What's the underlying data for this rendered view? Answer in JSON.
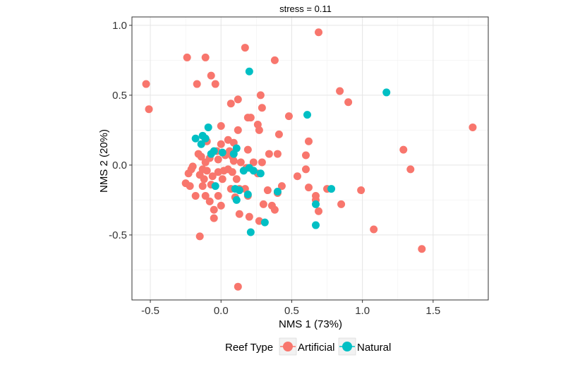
{
  "chart_data": {
    "type": "scatter",
    "title": "stress = 0.11",
    "xlabel": "NMS 1 (73%)",
    "ylabel": "NMS 2 (20%)",
    "xlim": [
      -0.63,
      1.89
    ],
    "ylim": [
      -0.965,
      1.06
    ],
    "x_ticks": [
      -0.5,
      0.0,
      0.5,
      1.0,
      1.5
    ],
    "x_tick_labels": [
      "-0.5",
      "0.0",
      "0.5",
      "1.0",
      "1.5"
    ],
    "y_ticks": [
      -0.5,
      0.0,
      0.5,
      1.0
    ],
    "y_tick_labels": [
      "-0.5",
      "0.0",
      "0.5",
      "1.0"
    ],
    "grid": true,
    "legend": {
      "title": "Reef Type",
      "position": "bottom",
      "items": [
        {
          "label": "Artificial",
          "color": "#F8766D"
        },
        {
          "label": "Natural",
          "color": "#00BFC4"
        }
      ]
    },
    "series": [
      {
        "name": "Artificial",
        "color": "#F8766D",
        "points": [
          [
            0.69,
            0.95
          ],
          [
            0.17,
            0.84
          ],
          [
            -0.24,
            0.77
          ],
          [
            -0.11,
            0.77
          ],
          [
            0.38,
            0.75
          ],
          [
            -0.53,
            0.58
          ],
          [
            -0.17,
            0.58
          ],
          [
            -0.07,
            0.64
          ],
          [
            -0.04,
            0.58
          ],
          [
            0.12,
            0.47
          ],
          [
            0.28,
            0.5
          ],
          [
            0.07,
            0.44
          ],
          [
            0.84,
            0.53
          ],
          [
            0.9,
            0.45
          ],
          [
            -0.51,
            0.4
          ],
          [
            0.19,
            0.34
          ],
          [
            0.21,
            0.34
          ],
          [
            0.29,
            0.41
          ],
          [
            0.48,
            0.35
          ],
          [
            1.78,
            0.27
          ],
          [
            0.26,
            0.29
          ],
          [
            0.27,
            0.25
          ],
          [
            0.12,
            0.25
          ],
          [
            0.0,
            0.28
          ],
          [
            0.41,
            0.22
          ],
          [
            0.62,
            0.17
          ],
          [
            -0.1,
            0.17
          ],
          [
            0.05,
            0.18
          ],
          [
            0.09,
            0.16
          ],
          [
            0.0,
            0.15
          ],
          [
            0.19,
            0.11
          ],
          [
            0.34,
            0.08
          ],
          [
            0.4,
            0.08
          ],
          [
            0.6,
            0.07
          ],
          [
            1.29,
            0.11
          ],
          [
            0.06,
            0.1
          ],
          [
            0.03,
            0.07
          ],
          [
            -0.03,
            0.1
          ],
          [
            0.08,
            0.06
          ],
          [
            -0.16,
            0.08
          ],
          [
            -0.14,
            0.06
          ],
          [
            0.09,
            0.03
          ],
          [
            0.14,
            0.02
          ],
          [
            0.23,
            0.02
          ],
          [
            0.29,
            0.02
          ],
          [
            -0.02,
            0.04
          ],
          [
            -0.08,
            0.05
          ],
          [
            -0.11,
            0.02
          ],
          [
            0.18,
            -0.02
          ],
          [
            0.05,
            -0.03
          ],
          [
            0.6,
            -0.03
          ],
          [
            1.34,
            -0.03
          ],
          [
            -0.2,
            -0.01
          ],
          [
            -0.13,
            -0.03
          ],
          [
            -0.1,
            -0.04
          ],
          [
            -0.02,
            -0.05
          ],
          [
            0.02,
            -0.04
          ],
          [
            0.08,
            -0.05
          ],
          [
            0.26,
            -0.06
          ],
          [
            0.54,
            -0.08
          ],
          [
            -0.23,
            -0.06
          ],
          [
            -0.21,
            -0.03
          ],
          [
            -0.15,
            -0.07
          ],
          [
            -0.12,
            -0.1
          ],
          [
            -0.06,
            -0.08
          ],
          [
            0.01,
            -0.1
          ],
          [
            0.11,
            -0.1
          ],
          [
            0.43,
            -0.15
          ],
          [
            0.62,
            -0.16
          ],
          [
            0.75,
            -0.17
          ],
          [
            0.99,
            -0.18
          ],
          [
            -0.25,
            -0.13
          ],
          [
            -0.22,
            -0.15
          ],
          [
            -0.13,
            -0.15
          ],
          [
            -0.07,
            -0.14
          ],
          [
            0.07,
            -0.17
          ],
          [
            0.13,
            -0.17
          ],
          [
            0.17,
            -0.17
          ],
          [
            0.33,
            -0.18
          ],
          [
            0.4,
            -0.2
          ],
          [
            -0.18,
            -0.22
          ],
          [
            -0.11,
            -0.22
          ],
          [
            -0.02,
            -0.22
          ],
          [
            0.1,
            -0.23
          ],
          [
            0.19,
            -0.22
          ],
          [
            0.67,
            -0.22
          ],
          [
            -0.08,
            -0.26
          ],
          [
            0.0,
            -0.29
          ],
          [
            0.3,
            -0.28
          ],
          [
            0.36,
            -0.29
          ],
          [
            0.67,
            -0.25
          ],
          [
            0.85,
            -0.28
          ],
          [
            -0.05,
            -0.32
          ],
          [
            0.38,
            -0.32
          ],
          [
            0.13,
            -0.35
          ],
          [
            0.2,
            -0.37
          ],
          [
            0.27,
            -0.4
          ],
          [
            -0.05,
            -0.38
          ],
          [
            0.69,
            -0.33
          ],
          [
            1.08,
            -0.46
          ],
          [
            -0.15,
            -0.51
          ],
          [
            1.42,
            -0.6
          ],
          [
            0.12,
            -0.87
          ]
        ]
      },
      {
        "name": "Natural",
        "color": "#00BFC4",
        "points": [
          [
            0.2,
            0.67
          ],
          [
            1.17,
            0.52
          ],
          [
            0.61,
            0.36
          ],
          [
            -0.09,
            0.27
          ],
          [
            -0.18,
            0.19
          ],
          [
            -0.13,
            0.21
          ],
          [
            -0.11,
            0.19
          ],
          [
            -0.14,
            0.15
          ],
          [
            -0.07,
            0.08
          ],
          [
            -0.05,
            0.1
          ],
          [
            0.01,
            0.09
          ],
          [
            0.11,
            0.12
          ],
          [
            0.09,
            0.08
          ],
          [
            0.2,
            -0.02
          ],
          [
            0.16,
            -0.04
          ],
          [
            0.23,
            -0.04
          ],
          [
            0.28,
            -0.06
          ],
          [
            -0.04,
            -0.15
          ],
          [
            0.1,
            -0.17
          ],
          [
            0.13,
            -0.18
          ],
          [
            0.4,
            -0.19
          ],
          [
            0.78,
            -0.17
          ],
          [
            0.19,
            -0.21
          ],
          [
            0.11,
            -0.25
          ],
          [
            0.67,
            -0.28
          ],
          [
            0.31,
            -0.41
          ],
          [
            0.67,
            -0.43
          ],
          [
            0.21,
            -0.48
          ]
        ]
      }
    ]
  }
}
